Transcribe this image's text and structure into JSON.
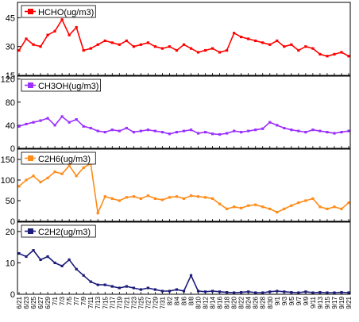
{
  "chart_data": [
    {
      "type": "line",
      "series": [
        {
          "name": "HCHO(ug/m3)"
        }
      ],
      "color": "#ff0000",
      "yticks": [
        15,
        30,
        45
      ],
      "ylim": [
        15,
        53
      ],
      "x": [
        "6/21",
        "6/23",
        "6/25",
        "6/27",
        "6/29",
        "7/1",
        "7/3",
        "7/5",
        "7/7",
        "7/9",
        "7/11",
        "7/13",
        "7/15",
        "7/17",
        "7/19",
        "7/21",
        "7/23",
        "7/25",
        "7/27",
        "7/29",
        "7/31",
        "8/2",
        "8/4",
        "8/6",
        "8/8",
        "8/10",
        "8/12",
        "8/14",
        "8/16",
        "8/18",
        "8/20",
        "8/22",
        "8/24",
        "8/26",
        "8/28",
        "8/30",
        "9/1",
        "9/3",
        "9/5",
        "9/7",
        "9/9",
        "9/11",
        "9/13",
        "9/15",
        "9/17",
        "9/19",
        "9/21"
      ],
      "values": [
        28,
        34,
        31,
        30,
        36,
        38,
        44,
        36,
        40,
        28,
        29,
        31,
        33,
        32,
        31,
        33,
        30,
        31,
        32,
        30,
        29,
        30,
        28,
        31,
        29,
        27,
        28,
        29,
        27,
        28,
        37,
        35,
        34,
        33,
        32,
        31,
        33,
        30,
        31,
        28,
        30,
        29,
        26,
        25,
        26,
        27,
        25
      ],
      "legend_position": "top-left"
    },
    {
      "type": "line",
      "series": [
        {
          "name": "CH3OH(ug/m3)"
        }
      ],
      "color": "#9b30ff",
      "yticks": [
        0,
        40,
        80,
        120
      ],
      "ylim": [
        0,
        125
      ],
      "x": [
        "6/21",
        "6/23",
        "6/25",
        "6/27",
        "6/29",
        "7/1",
        "7/3",
        "7/5",
        "7/7",
        "7/9",
        "7/11",
        "7/13",
        "7/15",
        "7/17",
        "7/19",
        "7/21",
        "7/23",
        "7/25",
        "7/27",
        "7/29",
        "7/31",
        "8/2",
        "8/4",
        "8/6",
        "8/8",
        "8/10",
        "8/12",
        "8/14",
        "8/16",
        "8/18",
        "8/20",
        "8/22",
        "8/24",
        "8/26",
        "8/28",
        "8/30",
        "9/1",
        "9/3",
        "9/5",
        "9/7",
        "9/9",
        "9/11",
        "9/13",
        "9/15",
        "9/17",
        "9/19",
        "9/21"
      ],
      "values": [
        38,
        42,
        45,
        48,
        52,
        40,
        55,
        45,
        50,
        38,
        35,
        30,
        28,
        32,
        30,
        35,
        28,
        30,
        32,
        30,
        28,
        25,
        28,
        30,
        32,
        26,
        28,
        25,
        24,
        26,
        30,
        28,
        30,
        32,
        34,
        45,
        40,
        35,
        32,
        30,
        28,
        32,
        30,
        28,
        26,
        28,
        30
      ],
      "legend_position": "top-left"
    },
    {
      "type": "line",
      "series": [
        {
          "name": "C2H6(ug/m3)"
        }
      ],
      "color": "#ff8c1a",
      "yticks": [
        0,
        50,
        100,
        150
      ],
      "ylim": [
        0,
        175
      ],
      "x": [
        "6/21",
        "6/23",
        "6/25",
        "6/27",
        "6/29",
        "7/1",
        "7/3",
        "7/5",
        "7/7",
        "7/9",
        "7/11",
        "7/13",
        "7/15",
        "7/17",
        "7/19",
        "7/21",
        "7/23",
        "7/25",
        "7/27",
        "7/29",
        "7/31",
        "8/2",
        "8/4",
        "8/6",
        "8/8",
        "8/10",
        "8/12",
        "8/14",
        "8/16",
        "8/18",
        "8/20",
        "8/22",
        "8/24",
        "8/26",
        "8/28",
        "8/30",
        "9/1",
        "9/3",
        "9/5",
        "9/7",
        "9/9",
        "9/11",
        "9/13",
        "9/15",
        "9/17",
        "9/19",
        "9/21"
      ],
      "values": [
        85,
        100,
        110,
        95,
        105,
        120,
        115,
        135,
        110,
        130,
        140,
        20,
        60,
        55,
        50,
        58,
        60,
        55,
        62,
        55,
        52,
        58,
        60,
        55,
        62,
        60,
        58,
        55,
        42,
        30,
        35,
        32,
        38,
        40,
        35,
        30,
        22,
        30,
        38,
        45,
        50,
        55,
        35,
        30,
        35,
        30,
        45
      ],
      "legend_position": "top-left"
    },
    {
      "type": "line",
      "series": [
        {
          "name": "C2H2(ug/m3)"
        }
      ],
      "color": "#1c1c7a",
      "yticks": [
        0,
        10,
        20
      ],
      "ylim": [
        0,
        23
      ],
      "x": [
        "6/21",
        "6/23",
        "6/25",
        "6/27",
        "6/29",
        "7/1",
        "7/3",
        "7/5",
        "7/7",
        "7/9",
        "7/11",
        "7/13",
        "7/15",
        "7/17",
        "7/19",
        "7/21",
        "7/23",
        "7/25",
        "7/27",
        "7/29",
        "7/31",
        "8/2",
        "8/4",
        "8/6",
        "8/8",
        "8/10",
        "8/12",
        "8/14",
        "8/16",
        "8/18",
        "8/20",
        "8/22",
        "8/24",
        "8/26",
        "8/28",
        "8/30",
        "9/1",
        "9/3",
        "9/5",
        "9/7",
        "9/9",
        "9/11",
        "9/13",
        "9/15",
        "9/17",
        "9/19",
        "9/21"
      ],
      "values": [
        13,
        12,
        14,
        11,
        12,
        10,
        9,
        11,
        8,
        6,
        4,
        3,
        3,
        2.5,
        2,
        2.5,
        2,
        1.5,
        2,
        1.5,
        1,
        1,
        1.5,
        1,
        6,
        1,
        0.8,
        1,
        0.8,
        0.6,
        0.5,
        0.6,
        0.8,
        0.5,
        0.5,
        0.8,
        1,
        0.8,
        0.6,
        0.5,
        0.8,
        0.5,
        0.6,
        0.5,
        0.5,
        0.6,
        0.5
      ],
      "legend_position": "top-left"
    }
  ]
}
